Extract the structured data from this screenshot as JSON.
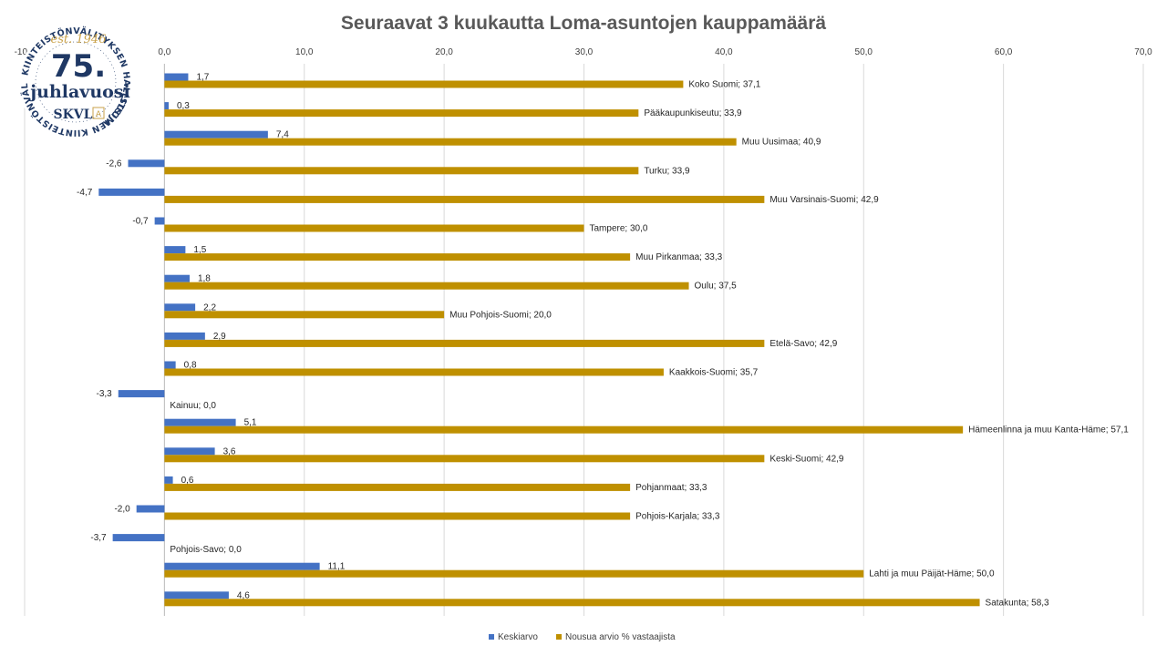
{
  "chart_data": {
    "type": "bar",
    "orientation": "horizontal",
    "title": "Seuraavat 3 kuukautta Loma-asuntojen kauppamäärä",
    "xlim": [
      -10,
      70
    ],
    "x_ticks": [
      "-10,0",
      "0,0",
      "10,0",
      "20,0",
      "30,0",
      "40,0",
      "50,0",
      "60,0",
      "70,0"
    ],
    "gridlines": "vertical",
    "legend_position": "bottom",
    "series": [
      {
        "name": "Keskiarvo",
        "color": "#4472c4",
        "values": [
          1.7,
          0.3,
          7.4,
          -2.6,
          -4.7,
          -0.7,
          1.5,
          1.8,
          2.2,
          2.9,
          0.8,
          -3.3,
          5.1,
          3.6,
          0.6,
          -2.0,
          -3.7,
          11.1,
          4.6
        ],
        "labels": [
          "1,7",
          "0,3",
          "7,4",
          "-2,6",
          "-4,7",
          "-0,7",
          "1,5",
          "1,8",
          "2,2",
          "2,9",
          "0,8",
          "-3,3",
          "5,1",
          "3,6",
          "0,6",
          "-2,0",
          "-3,7",
          "11,1",
          "4,6"
        ]
      },
      {
        "name": "Nousua arvio % vastaajista",
        "color": "#bf9000",
        "values": [
          37.1,
          33.9,
          40.9,
          33.9,
          42.9,
          30.0,
          33.3,
          37.5,
          20.0,
          42.9,
          35.7,
          0.0,
          57.1,
          42.9,
          33.3,
          33.3,
          0.0,
          50.0,
          58.3
        ],
        "labels": [
          "Koko Suomi; 37,1",
          "Pääkaupunkiseutu; 33,9",
          "Muu Uusimaa; 40,9",
          "Turku; 33,9",
          "Muu Varsinais-Suomi; 42,9",
          "Tampere; 30,0",
          "Muu Pirkanmaa; 33,3",
          "Oulu; 37,5",
          "Muu Pohjois-Suomi; 20,0",
          "Etelä-Savo; 42,9",
          "Kaakkois-Suomi; 35,7",
          "Kainuu; 0,0",
          "Hämeenlinna ja muu Kanta-Häme; 57,1",
          "Keski-Suomi; 42,9",
          "Pohjanmaat; 33,3",
          "Pohjois-Karjala; 33,3",
          "Pohjois-Savo; 0,0",
          "Lahti ja muu Päijät-Häme; 50,0",
          "Satakunta; 58,3"
        ]
      }
    ]
  },
  "logo": {
    "top_arc": "KIINTEISTÖNVÄLITYKSEN HALLITSIJA",
    "ring_text": "SUOMEN KIINTEISTÖNVÄLITTÄJÄT RY",
    "est": "est. 1946",
    "number": "75.",
    "word": "juhlavuosi",
    "brand": "SKVL",
    "brand_mark": "A",
    "navy": "#1f3864",
    "gold": "#c9a24a"
  }
}
